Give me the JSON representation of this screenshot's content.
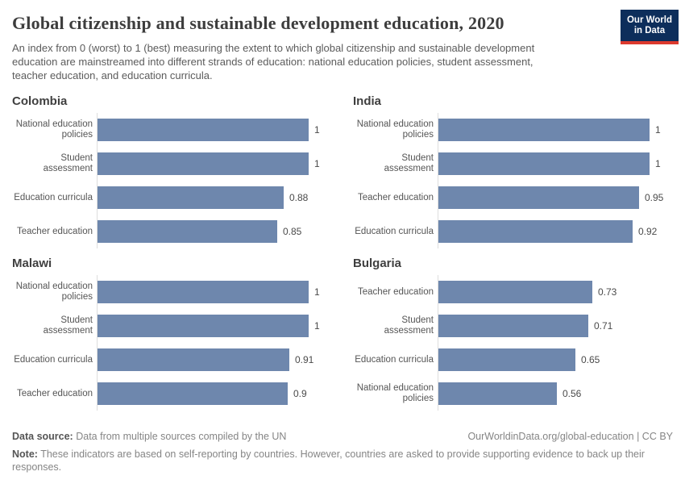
{
  "header": {
    "logo": {
      "line1": "Our World",
      "line2": "in Data"
    }
  },
  "chart_data": {
    "type": "bar",
    "orientation": "horizontal",
    "title": "Global citizenship and sustainable development education, 2020",
    "subtitle": "An index from 0 (worst) to 1 (best) measuring the extent to which global citizenship and sustainable development education are mainstreamed into different strands of education: national education policies, student assessment, teacher education, and education curricula.",
    "xlim": [
      0,
      1
    ],
    "grid": false,
    "legend": "none",
    "bar_color": "#6e87ad",
    "axis_color": "#dedede",
    "panels": [
      {
        "title": "Colombia",
        "categories": [
          "National education policies",
          "Student assessment",
          "Education curricula",
          "Teacher education"
        ],
        "values": [
          1,
          1,
          0.88,
          0.85
        ]
      },
      {
        "title": "India",
        "categories": [
          "National education policies",
          "Student assessment",
          "Teacher education",
          "Education curricula"
        ],
        "values": [
          1,
          1,
          0.95,
          0.92
        ]
      },
      {
        "title": "Malawi",
        "categories": [
          "National education policies",
          "Student assessment",
          "Education curricula",
          "Teacher education"
        ],
        "values": [
          1,
          1,
          0.91,
          0.9
        ]
      },
      {
        "title": "Bulgaria",
        "categories": [
          "Teacher education",
          "Student assessment",
          "Education curricula",
          "National education policies"
        ],
        "values": [
          0.73,
          0.71,
          0.65,
          0.56
        ]
      }
    ]
  },
  "footer": {
    "source_label": "Data source:",
    "source_text": "Data from multiple sources compiled by the UN",
    "url": "OurWorldinData.org/global-education",
    "separator": "|",
    "license": "CC BY",
    "note_label": "Note:",
    "note_text": "These indicators are based on self-reporting by countries. However, countries are asked to provide supporting evidence to back up their responses."
  },
  "colors": {
    "bar": "#6e87ad",
    "title_text": "#3d3d3d",
    "body_text": "#555555",
    "logo_navy": "#0d2e5b",
    "logo_red": "#dc3a2e"
  }
}
